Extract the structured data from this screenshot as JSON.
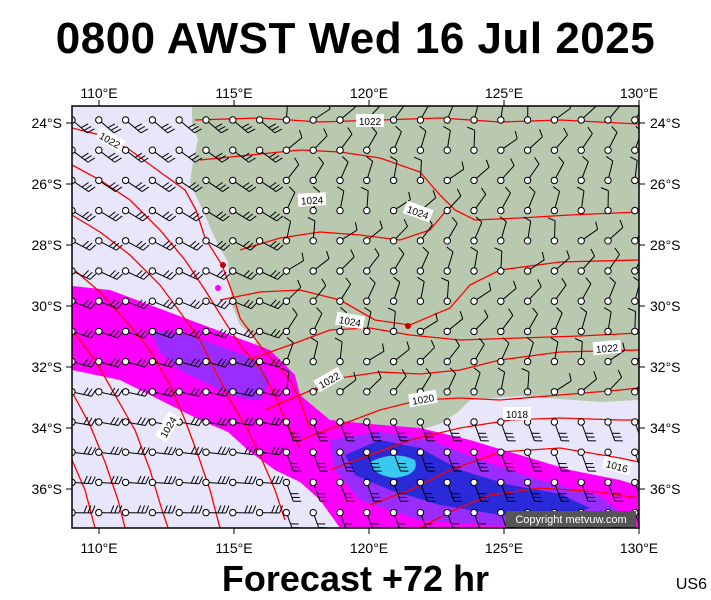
{
  "header": {
    "title": "0800 AWST Wed 16 Jul 2025"
  },
  "footer": {
    "forecast": "Forecast +72 hr",
    "code": "US6"
  },
  "copyright": "Copyright metvuw.com",
  "axes": {
    "lon_labels": [
      "110°E",
      "115°E",
      "120°E",
      "125°E",
      "130°E"
    ],
    "lat_labels": [
      "24°S",
      "26°S",
      "28°S",
      "30°S",
      "32°S",
      "34°S",
      "36°S"
    ]
  },
  "isobar_labels": [
    "1022",
    "1022",
    "1024",
    "1024",
    "1024",
    "1022",
    "1020",
    "1018",
    "1016",
    "1024"
  ],
  "colors": {
    "ocean": "#e8e6fa",
    "land": "#b8c9b0",
    "isobar": "#ff0000",
    "rain_light": "#ff00ff",
    "rain_medium": "#9a2cff",
    "rain_heavy": "#2a2ad8",
    "rain_extreme": "#38c8f0"
  }
}
